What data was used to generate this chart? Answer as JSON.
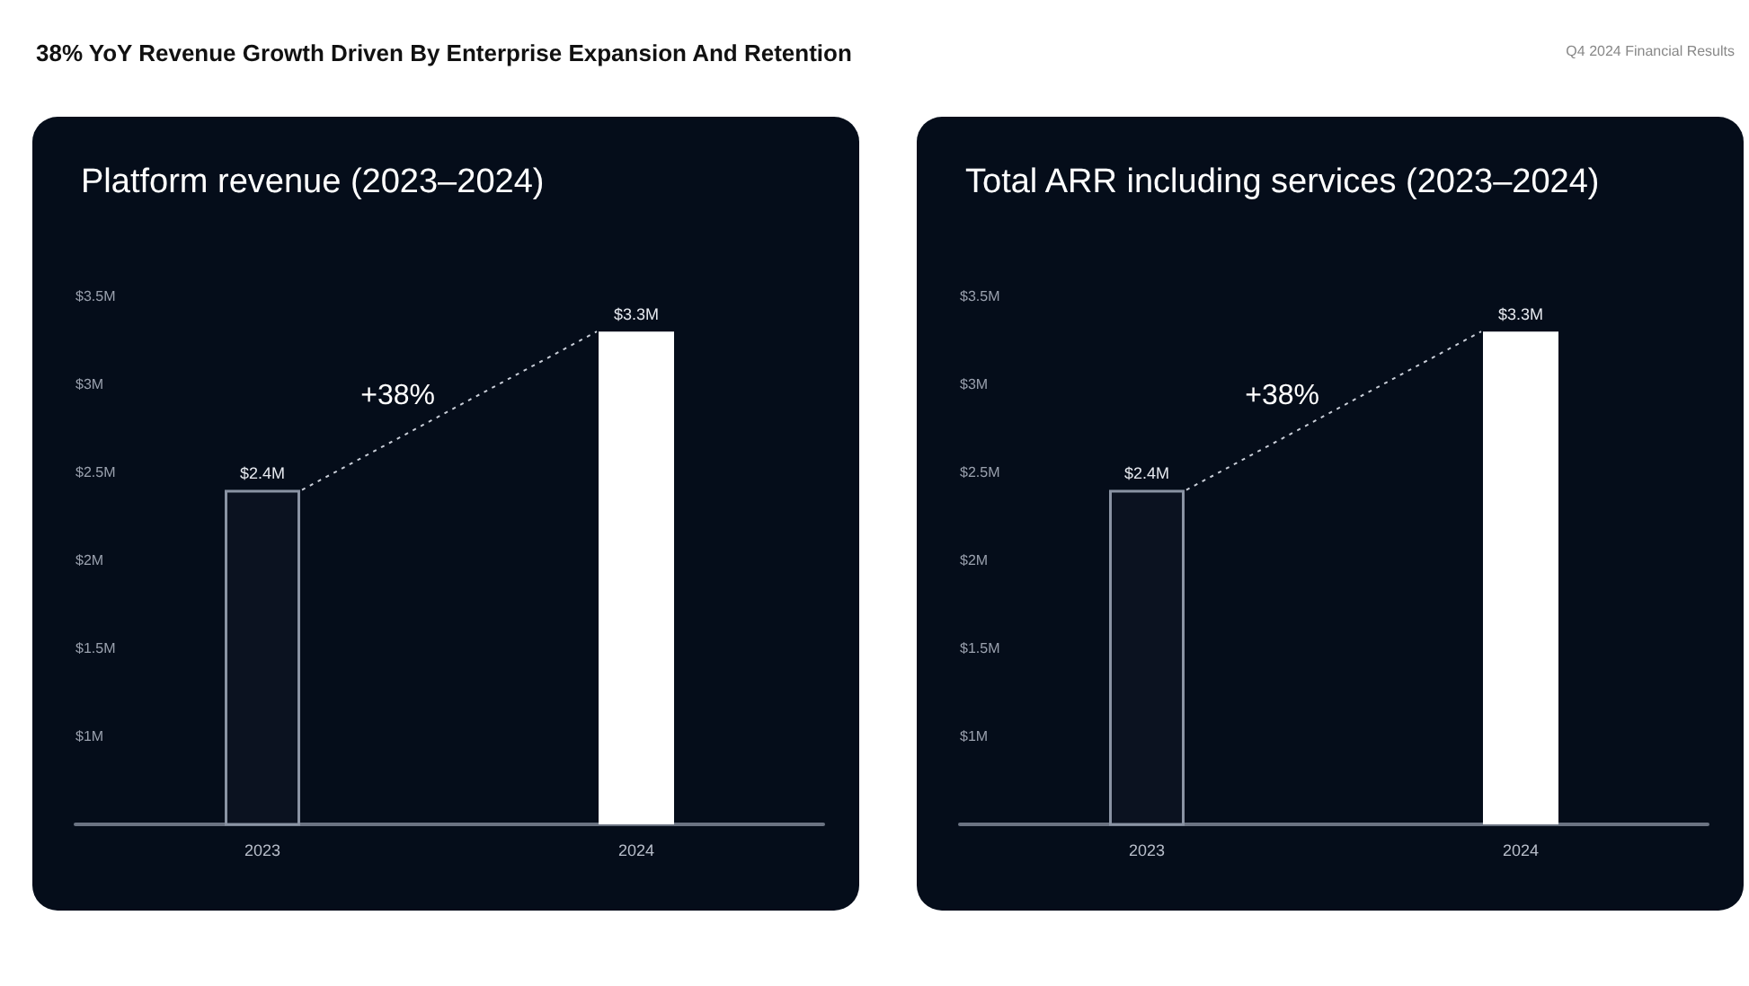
{
  "chart_data": [
    {
      "type": "bar",
      "title": "Platform revenue (2023–2024)",
      "categories": [
        "2023",
        "2024"
      ],
      "values": [
        2.4,
        3.3
      ],
      "colors": [
        "#0b1220",
        "#ffffff"
      ],
      "value_labels": [
        "$2.4M",
        "$3.3M"
      ],
      "ylim": [
        0.5,
        3.5
      ],
      "yticks": [
        {
          "value": 1,
          "label": "$1M"
        },
        {
          "value": 1.5,
          "label": "$1.5M"
        },
        {
          "value": 2,
          "label": "$2M"
        },
        {
          "value": 2.5,
          "label": "$2.5M"
        },
        {
          "value": 3,
          "label": "$3M"
        },
        {
          "value": 3.5,
          "label": "$3.5M"
        }
      ],
      "grid": false,
      "annotations": [
        "38% YoY Revenue Growth Driven By Enterprise Expansion And Retention",
        "Q4 2024 Financial Results",
        "+38%"
      ]
    },
    {
      "type": "bar",
      "title": "Total ARR including services (2023–2024)",
      "categories": [
        "2023",
        "2024"
      ],
      "values": [
        2.4,
        3.3
      ],
      "colors": [
        "#0b1220",
        "#ffffff"
      ],
      "value_labels": [
        "$2.4M",
        "$3.3M"
      ],
      "ylim": [
        0.5,
        3.5
      ],
      "yticks": [
        {
          "value": 1,
          "label": "$1M"
        },
        {
          "value": 1.5,
          "label": "$1.5M"
        },
        {
          "value": 2,
          "label": "$2M"
        },
        {
          "value": 2.5,
          "label": "$2.5M"
        },
        {
          "value": 3,
          "label": "$3M"
        },
        {
          "value": 3.5,
          "label": "$3.5M"
        }
      ],
      "grid": false,
      "annotations": [
        "+38%"
      ]
    }
  ]
}
